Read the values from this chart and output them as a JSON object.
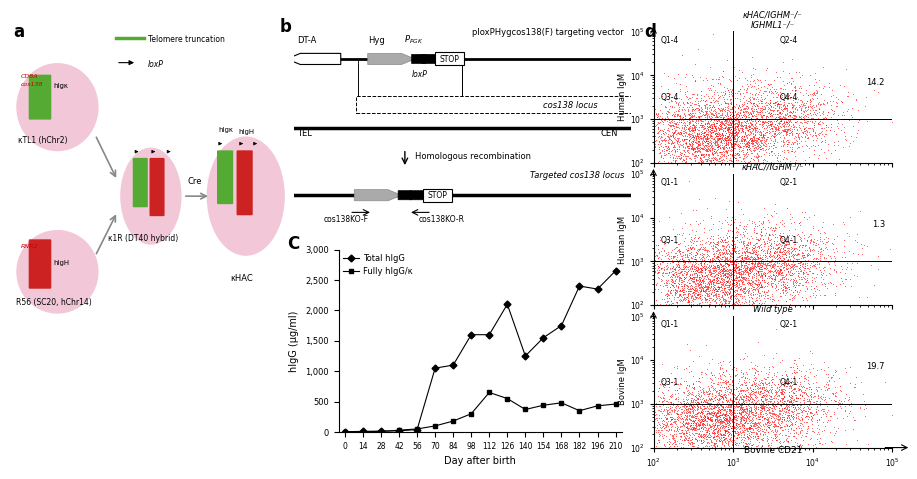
{
  "panel_c": {
    "days": [
      0,
      14,
      28,
      42,
      56,
      70,
      84,
      98,
      112,
      126,
      140,
      154,
      168,
      182,
      196,
      210
    ],
    "total_hIgG": [
      5,
      10,
      15,
      20,
      40,
      1050,
      1100,
      1600,
      1600,
      2100,
      1250,
      1550,
      1750,
      2400,
      2350,
      2650
    ],
    "fully_hIgG_kappa": [
      3,
      5,
      8,
      30,
      50,
      100,
      180,
      300,
      650,
      550,
      370,
      440,
      480,
      350,
      430,
      460
    ],
    "ylabel": "hIgG (μg/ml)",
    "xlabel": "Day after birth",
    "yticks": [
      0,
      500,
      1000,
      1500,
      2000,
      2500,
      3000
    ],
    "xticks": [
      0,
      14,
      28,
      42,
      56,
      70,
      84,
      98,
      112,
      126,
      140,
      154,
      168,
      182,
      196,
      210
    ],
    "legend_total": "Total hIgG",
    "legend_fully": "Fully hIgG/κ"
  },
  "panel_d": {
    "titles": [
      "κHAC/IGHM⁻/⁻\nIGHML1⁻/⁻",
      "κHAC//IGHM⁻/⁻",
      "Wild type"
    ],
    "ylabels": [
      "Human IgM",
      "Human IgM",
      "Bovine IgM"
    ],
    "xlabel": "Bovine CD21",
    "quadrant_labels_1": [
      "Q1-4",
      "Q2-4",
      "Q3-4",
      "Q4-4"
    ],
    "quadrant_labels_2": [
      "Q1-1",
      "Q2-1",
      "Q3-1",
      "Q4-1"
    ],
    "quadrant_labels_3": [
      "Q1-1",
      "Q2-1",
      "Q3-1",
      "Q4-1"
    ],
    "percentages": [
      "14.2",
      "1.3",
      "19.7"
    ]
  }
}
